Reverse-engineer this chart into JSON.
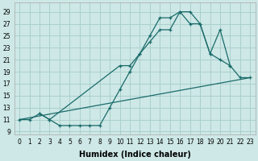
{
  "xlabel": "Humidex (Indice chaleur)",
  "background_color": "#cde8e6",
  "grid_color": "#aad0cc",
  "line_color": "#1a6b6b",
  "series1_x": [
    2,
    3,
    4,
    5,
    6,
    7,
    8,
    9,
    10,
    11,
    12,
    13,
    14,
    15,
    16,
    17,
    18,
    19,
    20,
    21
  ],
  "series1_y": [
    12,
    11,
    10,
    10,
    10,
    10,
    10,
    13,
    16,
    19,
    22,
    25,
    28,
    28,
    29,
    29,
    27,
    22,
    21,
    20
  ],
  "series2_x": [
    0,
    1,
    2,
    3,
    10,
    11,
    12,
    13,
    14,
    15,
    16,
    17,
    18,
    19,
    20,
    21,
    22,
    23
  ],
  "series2_y": [
    11,
    11,
    12,
    11,
    20,
    20,
    22,
    24,
    26,
    26,
    29,
    27,
    27,
    22,
    26,
    20,
    18,
    18
  ],
  "series3_x": [
    0,
    23
  ],
  "series3_y": [
    11,
    18
  ],
  "ylim": [
    8.5,
    30.5
  ],
  "xlim": [
    -0.5,
    23.5
  ],
  "yticks": [
    9,
    11,
    13,
    15,
    17,
    19,
    21,
    23,
    25,
    27,
    29
  ],
  "xticks": [
    0,
    1,
    2,
    3,
    4,
    5,
    6,
    7,
    8,
    9,
    10,
    11,
    12,
    13,
    14,
    15,
    16,
    17,
    18,
    19,
    20,
    21,
    22,
    23
  ],
  "tick_fontsize": 5.5,
  "xlabel_fontsize": 7
}
